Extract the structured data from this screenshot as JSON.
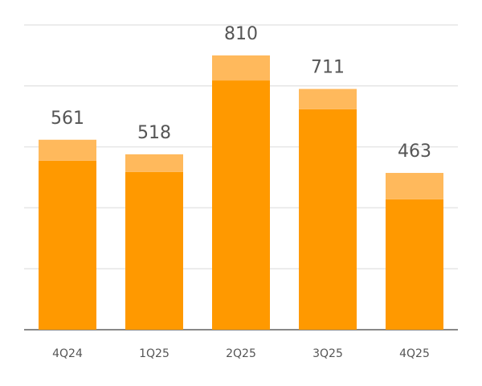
{
  "chart_data": {
    "type": "stacked_bar",
    "categories": [
      "4Q24",
      "1Q25",
      "2Q25",
      "3Q25",
      "4Q25"
    ],
    "series": [
      {
        "color": "#ff9900",
        "values": [
          499,
          466,
          736,
          651,
          385
        ]
      },
      {
        "color": "#ffb95c",
        "values": [
          62,
          52,
          74,
          60,
          78
        ]
      }
    ],
    "totals": [
      561,
      518,
      810,
      711,
      463
    ],
    "ylim": [
      0,
      900
    ],
    "yticks": [
      0,
      180,
      360,
      540,
      720,
      900
    ],
    "grid": true
  }
}
